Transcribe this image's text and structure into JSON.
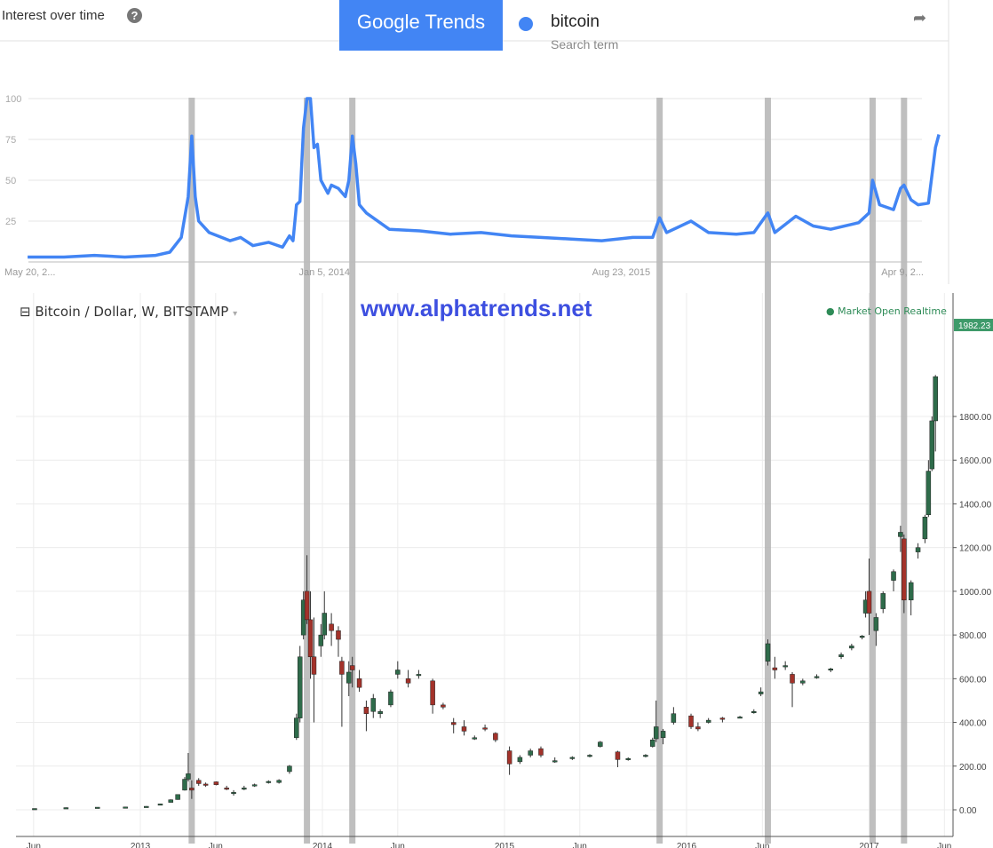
{
  "header": {
    "title": "Interest over time",
    "help_icon": "question-circle-icon",
    "logo_text": "Google Trends",
    "term": "bitcoin",
    "term_sub": "Search term",
    "term_color": "#4285f4",
    "share_icon": "share-arrow-icon"
  },
  "overlay": {
    "symbol": "Bitcoin / Dollar, W, BITSTAMP",
    "watermark": "www.alphatrends.net",
    "market_status": "● Market Open  Realtime"
  },
  "chart_data": [
    {
      "type": "line",
      "name": "bitcoin",
      "color": "#4285f4",
      "ylim": [
        0,
        100
      ],
      "yticks": [
        25,
        50,
        75,
        100
      ],
      "xtick_labels": [
        "May 20, 2...",
        "Jan 5, 2014",
        "Aug 23, 2015",
        "Apr 9, 2..."
      ],
      "xtick_dates": [
        "2012-05-20",
        "2014-01-05",
        "2015-08-23",
        "2017-04-09"
      ],
      "points": [
        [
          "2012-05-20",
          3
        ],
        [
          "2012-08-01",
          3
        ],
        [
          "2012-10-01",
          4
        ],
        [
          "2012-12-01",
          3
        ],
        [
          "2013-02-01",
          4
        ],
        [
          "2013-03-01",
          6
        ],
        [
          "2013-03-24",
          15
        ],
        [
          "2013-04-07",
          40
        ],
        [
          "2013-04-14",
          77
        ],
        [
          "2013-04-21",
          40
        ],
        [
          "2013-04-28",
          25
        ],
        [
          "2013-05-19",
          18
        ],
        [
          "2013-06-30",
          13
        ],
        [
          "2013-07-21",
          15
        ],
        [
          "2013-08-15",
          10
        ],
        [
          "2013-09-15",
          12
        ],
        [
          "2013-10-13",
          9
        ],
        [
          "2013-10-27",
          16
        ],
        [
          "2013-11-03",
          13
        ],
        [
          "2013-11-10",
          35
        ],
        [
          "2013-11-17",
          37
        ],
        [
          "2013-11-24",
          82
        ],
        [
          "2013-12-01",
          100
        ],
        [
          "2013-12-08",
          100
        ],
        [
          "2013-12-15",
          70
        ],
        [
          "2013-12-22",
          72
        ],
        [
          "2013-12-29",
          50
        ],
        [
          "2014-01-12",
          42
        ],
        [
          "2014-01-19",
          47
        ],
        [
          "2014-02-02",
          45
        ],
        [
          "2014-02-16",
          40
        ],
        [
          "2014-02-23",
          50
        ],
        [
          "2014-03-02",
          77
        ],
        [
          "2014-03-09",
          60
        ],
        [
          "2014-03-16",
          35
        ],
        [
          "2014-03-30",
          30
        ],
        [
          "2014-05-15",
          20
        ],
        [
          "2014-07-15",
          19
        ],
        [
          "2014-09-15",
          17
        ],
        [
          "2014-11-15",
          18
        ],
        [
          "2015-01-15",
          16
        ],
        [
          "2015-03-15",
          15
        ],
        [
          "2015-05-15",
          14
        ],
        [
          "2015-07-15",
          13
        ],
        [
          "2015-09-15",
          15
        ],
        [
          "2015-10-25",
          15
        ],
        [
          "2015-11-08",
          27
        ],
        [
          "2015-11-22",
          18
        ],
        [
          "2016-01-10",
          25
        ],
        [
          "2016-02-14",
          18
        ],
        [
          "2016-04-10",
          17
        ],
        [
          "2016-05-15",
          18
        ],
        [
          "2016-06-12",
          30
        ],
        [
          "2016-06-26",
          18
        ],
        [
          "2016-08-07",
          28
        ],
        [
          "2016-09-11",
          22
        ],
        [
          "2016-10-16",
          20
        ],
        [
          "2016-12-11",
          24
        ],
        [
          "2017-01-01",
          30
        ],
        [
          "2017-01-08",
          50
        ],
        [
          "2017-01-22",
          35
        ],
        [
          "2017-02-19",
          32
        ],
        [
          "2017-03-05",
          45
        ],
        [
          "2017-03-12",
          47
        ],
        [
          "2017-03-26",
          38
        ],
        [
          "2017-04-09",
          35
        ],
        [
          "2017-04-30",
          36
        ],
        [
          "2017-05-14",
          70
        ],
        [
          "2017-05-21",
          78
        ]
      ]
    },
    {
      "type": "candlestick",
      "series": "Bitcoin / Dollar",
      "up_color": "#2e6b4a",
      "down_color": "#a3322a",
      "ylim": [
        -100,
        2000
      ],
      "yticks": [
        "0.00",
        "200.00",
        "400.00",
        "600.00",
        "800.00",
        "1000.00",
        "1200.00",
        "1400.00",
        "1600.00",
        "1800.00"
      ],
      "last_price": "1982.23",
      "last_price_color": "#3e9a6a",
      "xtick_labels": [
        "Jun",
        "2013",
        "Jun",
        "2014",
        "Jun",
        "2015",
        "Jun",
        "2016",
        "Jun",
        "2017",
        "Jun"
      ],
      "xtick_dates": [
        "2012-06-01",
        "2013-01-01",
        "2013-06-01",
        "2014-01-01",
        "2014-06-01",
        "2015-01-01",
        "2015-06-01",
        "2016-01-01",
        "2016-06-01",
        "2017-01-01",
        "2017-06-01"
      ],
      "ohlc": [
        [
          "2012-06-03",
          5,
          6,
          5,
          6
        ],
        [
          "2012-08-05",
          9,
          11,
          8,
          10
        ],
        [
          "2012-10-07",
          12,
          12,
          11,
          12
        ],
        [
          "2012-12-02",
          12,
          14,
          12,
          13
        ],
        [
          "2013-01-13",
          14,
          17,
          14,
          16
        ],
        [
          "2013-02-10",
          22,
          28,
          22,
          27
        ],
        [
          "2013-03-03",
          34,
          48,
          34,
          46
        ],
        [
          "2013-03-17",
          47,
          70,
          46,
          70
        ],
        [
          "2013-03-31",
          90,
          150,
          88,
          140
        ],
        [
          "2013-04-07",
          140,
          260,
          130,
          165
        ],
        [
          "2013-04-14",
          100,
          135,
          50,
          90
        ],
        [
          "2013-04-28",
          135,
          145,
          110,
          120
        ],
        [
          "2013-05-12",
          118,
          125,
          105,
          115
        ],
        [
          "2013-06-02",
          128,
          130,
          112,
          115
        ],
        [
          "2013-06-23",
          100,
          110,
          90,
          95
        ],
        [
          "2013-07-07",
          75,
          90,
          65,
          80
        ],
        [
          "2013-07-28",
          95,
          110,
          90,
          100
        ],
        [
          "2013-08-18",
          110,
          120,
          105,
          115
        ],
        [
          "2013-09-15",
          125,
          135,
          120,
          130
        ],
        [
          "2013-10-06",
          125,
          140,
          120,
          135
        ],
        [
          "2013-10-27",
          175,
          205,
          165,
          200
        ],
        [
          "2013-11-10",
          330,
          440,
          320,
          420
        ],
        [
          "2013-11-17",
          420,
          750,
          400,
          700
        ],
        [
          "2013-11-24",
          800,
          1000,
          780,
          960
        ],
        [
          "2013-12-01",
          1000,
          1165,
          850,
          870
        ],
        [
          "2013-12-08",
          870,
          1000,
          600,
          700
        ],
        [
          "2013-12-15",
          700,
          880,
          400,
          620
        ],
        [
          "2013-12-29",
          750,
          850,
          700,
          800
        ],
        [
          "2014-01-05",
          800,
          1000,
          780,
          900
        ],
        [
          "2014-01-19",
          850,
          900,
          750,
          820
        ],
        [
          "2014-02-02",
          820,
          840,
          700,
          780
        ],
        [
          "2014-02-09",
          680,
          700,
          380,
          620
        ],
        [
          "2014-02-23",
          580,
          680,
          520,
          630
        ],
        [
          "2014-03-02",
          660,
          700,
          560,
          640
        ],
        [
          "2014-03-16",
          600,
          640,
          540,
          560
        ],
        [
          "2014-03-30",
          470,
          500,
          360,
          440
        ],
        [
          "2014-04-13",
          450,
          530,
          420,
          510
        ],
        [
          "2014-04-27",
          440,
          460,
          420,
          450
        ],
        [
          "2014-05-18",
          480,
          550,
          470,
          540
        ],
        [
          "2014-06-01",
          620,
          680,
          600,
          640
        ],
        [
          "2014-06-22",
          600,
          640,
          560,
          580
        ],
        [
          "2014-07-13",
          620,
          640,
          600,
          620
        ],
        [
          "2014-08-10",
          590,
          600,
          440,
          480
        ],
        [
          "2014-08-31",
          480,
          490,
          460,
          470
        ],
        [
          "2014-09-21",
          400,
          420,
          350,
          390
        ],
        [
          "2014-10-12",
          380,
          410,
          340,
          360
        ],
        [
          "2014-11-02",
          330,
          340,
          320,
          330
        ],
        [
          "2014-11-23",
          375,
          390,
          360,
          370
        ],
        [
          "2014-12-14",
          350,
          355,
          310,
          320
        ],
        [
          "2015-01-11",
          270,
          290,
          160,
          210
        ],
        [
          "2015-02-01",
          220,
          250,
          210,
          240
        ],
        [
          "2015-02-22",
          250,
          280,
          240,
          270
        ],
        [
          "2015-03-15",
          280,
          290,
          240,
          250
        ],
        [
          "2015-04-12",
          225,
          240,
          215,
          225
        ],
        [
          "2015-05-17",
          235,
          245,
          228,
          240
        ],
        [
          "2015-06-21",
          245,
          255,
          240,
          250
        ],
        [
          "2015-07-12",
          290,
          315,
          285,
          310
        ],
        [
          "2015-08-16",
          265,
          270,
          195,
          230
        ],
        [
          "2015-09-06",
          235,
          240,
          225,
          235
        ],
        [
          "2015-10-11",
          245,
          255,
          240,
          250
        ],
        [
          "2015-10-25",
          290,
          330,
          285,
          320
        ],
        [
          "2015-11-01",
          325,
          500,
          310,
          380
        ],
        [
          "2015-11-15",
          330,
          370,
          300,
          360
        ],
        [
          "2015-12-06",
          400,
          470,
          390,
          440
        ],
        [
          "2016-01-10",
          430,
          440,
          370,
          380
        ],
        [
          "2016-01-24",
          380,
          400,
          360,
          370
        ],
        [
          "2016-02-14",
          400,
          420,
          395,
          410
        ],
        [
          "2016-03-13",
          420,
          425,
          400,
          415
        ],
        [
          "2016-04-17",
          425,
          430,
          420,
          425
        ],
        [
          "2016-05-15",
          445,
          460,
          440,
          450
        ],
        [
          "2016-05-29",
          530,
          560,
          520,
          540
        ],
        [
          "2016-06-12",
          680,
          780,
          660,
          760
        ],
        [
          "2016-06-26",
          650,
          700,
          600,
          640
        ],
        [
          "2016-07-17",
          660,
          680,
          640,
          660
        ],
        [
          "2016-07-31",
          620,
          630,
          470,
          580
        ],
        [
          "2016-08-21",
          580,
          600,
          570,
          590
        ],
        [
          "2016-09-18",
          610,
          620,
          600,
          610
        ],
        [
          "2016-10-16",
          640,
          650,
          630,
          645
        ],
        [
          "2016-11-06",
          700,
          720,
          690,
          710
        ],
        [
          "2016-11-27",
          740,
          760,
          730,
          750
        ],
        [
          "2016-12-18",
          790,
          800,
          780,
          795
        ],
        [
          "2016-12-25",
          900,
          1000,
          880,
          960
        ],
        [
          "2017-01-01",
          1000,
          1150,
          800,
          900
        ],
        [
          "2017-01-15",
          820,
          900,
          750,
          880
        ],
        [
          "2017-01-29",
          920,
          1000,
          900,
          990
        ],
        [
          "2017-02-19",
          1050,
          1100,
          1000,
          1090
        ],
        [
          "2017-03-05",
          1250,
          1300,
          1180,
          1270
        ],
        [
          "2017-03-12",
          1240,
          1260,
          900,
          960
        ],
        [
          "2017-03-26",
          960,
          1050,
          890,
          1040
        ],
        [
          "2017-04-09",
          1180,
          1220,
          1150,
          1200
        ],
        [
          "2017-04-23",
          1240,
          1350,
          1220,
          1340
        ],
        [
          "2017-04-30",
          1350,
          1600,
          1340,
          1550
        ],
        [
          "2017-05-07",
          1560,
          1800,
          1550,
          1780
        ],
        [
          "2017-05-14",
          1780,
          1990,
          1640,
          1982.23
        ]
      ]
    }
  ],
  "highlight_dates": [
    "2013-04-14",
    "2013-12-01",
    "2014-03-02",
    "2015-11-08",
    "2016-06-12",
    "2017-01-08",
    "2017-03-12"
  ],
  "highlight_color": "#b4b4b4"
}
